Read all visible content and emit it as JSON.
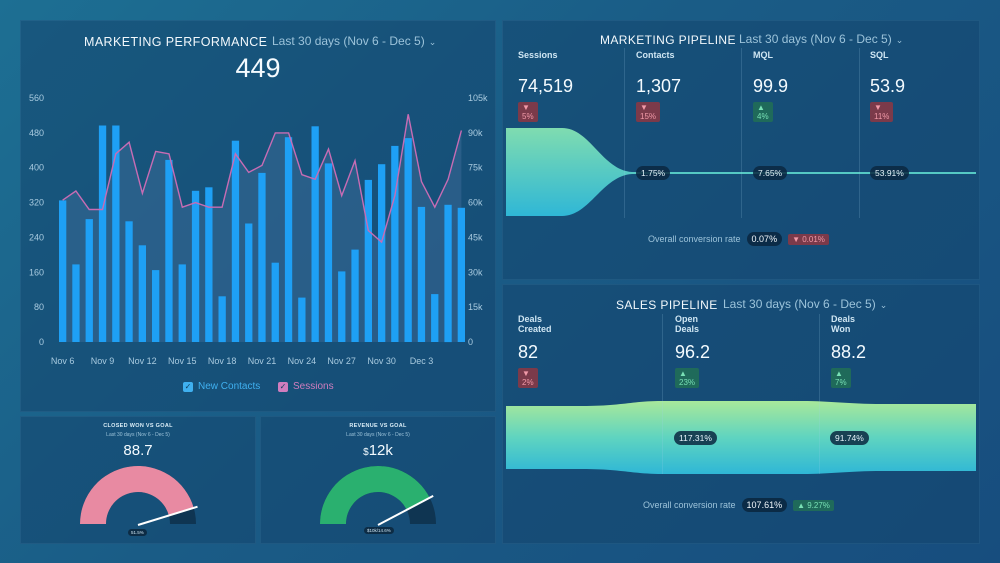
{
  "marketing_performance": {
    "title": "MARKETING PERFORMANCE",
    "date_range": "Last 30 days (Nov 6 - Dec 5)",
    "big_value": "449",
    "legend_contacts": "New Contacts",
    "legend_sessions": "Sessions",
    "colors": {
      "bars": "#1ea0f5",
      "line": "#c86cb4"
    },
    "chart_data": {
      "type": "bar",
      "title": "MARKETING PERFORMANCE",
      "x_tick_labels": [
        "Nov 6",
        "Nov 9",
        "Nov 12",
        "Nov 15",
        "Nov 18",
        "Nov 21",
        "Nov 24",
        "Nov 27",
        "Nov 30",
        "Dec 3"
      ],
      "left_ticks": [
        "0",
        "80",
        "160",
        "240",
        "320",
        "400",
        "480",
        "560"
      ],
      "right_ticks": [
        "0",
        "15k",
        "30k",
        "45k",
        "60k",
        "75k",
        "90k",
        "105k"
      ],
      "ylim_left": [
        0,
        560
      ],
      "ylim_right": [
        0,
        105000
      ],
      "series": [
        {
          "name": "New Contacts",
          "type": "bar",
          "axis": "left",
          "values": [
            325,
            178,
            282,
            497,
            497,
            277,
            222,
            165,
            418,
            178,
            347,
            355,
            105,
            462,
            272,
            388,
            182,
            470,
            102,
            495,
            410,
            162,
            212,
            372,
            408,
            450,
            468,
            310,
            110,
            315,
            308
          ]
        },
        {
          "name": "Sessions",
          "type": "line",
          "axis": "right",
          "values": [
            61000,
            65000,
            57000,
            57000,
            81000,
            86000,
            64000,
            82000,
            81000,
            58000,
            60000,
            58000,
            58000,
            81000,
            73000,
            76000,
            90000,
            90000,
            72000,
            70000,
            83000,
            63000,
            78000,
            48000,
            43000,
            63000,
            98000,
            69000,
            58000,
            70000,
            91000
          ]
        }
      ]
    }
  },
  "closed_won": {
    "title": "CLOSED WON VS GOAL",
    "date_range": "Last 30 days (Nov 6 - Dec 5)",
    "value": "88.7",
    "caption": "51.5%",
    "fraction": 0.91,
    "colors": {
      "fill": "#e88aa2",
      "track": "#0f3552"
    }
  },
  "revenue": {
    "title": "REVENUE VS GOAL",
    "date_range": "Last 30 days (Nov 6 - Dec 5)",
    "value_prefix": "$",
    "value": "12k",
    "caption": "$10k/14.6%",
    "fraction": 0.85,
    "colors": {
      "fill": "#2ab06f",
      "track": "#0f3552"
    }
  },
  "marketing_pipeline": {
    "title": "MARKETING PIPELINE",
    "date_range": "Last 30 days (Nov 6 - Dec 5)",
    "stages": [
      {
        "label": "Sessions",
        "value": "74,519",
        "change": "▼ 5%",
        "dir": "down"
      },
      {
        "label": "Contacts",
        "value": "1,307",
        "change": "▼ 15%",
        "dir": "down"
      },
      {
        "label": "MQL",
        "value": "99.9",
        "change": "▲ 4%",
        "dir": "up"
      },
      {
        "label": "SQL",
        "value": "53.9",
        "change": "▼ 11%",
        "dir": "down"
      }
    ],
    "rates": [
      "1.75%",
      "7.65%",
      "53.91%"
    ],
    "overall_label": "Overall conversion rate",
    "overall_value": "0.07%",
    "overall_change": "▼ 0.01%",
    "overall_dir": "down"
  },
  "sales_pipeline": {
    "title": "SALES PIPELINE",
    "date_range": "Last 30 days (Nov 6 - Dec 5)",
    "stages": [
      {
        "label": "Deals Created",
        "value": "82",
        "change": "▼ 2%",
        "dir": "down"
      },
      {
        "label": "Open Deals",
        "value": "96.2",
        "change": "▲ 23%",
        "dir": "up"
      },
      {
        "label": "Deals Won",
        "value": "88.2",
        "change": "▲ 7%",
        "dir": "up"
      }
    ],
    "rates": [
      "117.31%",
      "91.74%"
    ],
    "overall_label": "Overall conversion rate",
    "overall_value": "107.61%",
    "overall_change": "▲ 9.27%",
    "overall_dir": "up"
  }
}
